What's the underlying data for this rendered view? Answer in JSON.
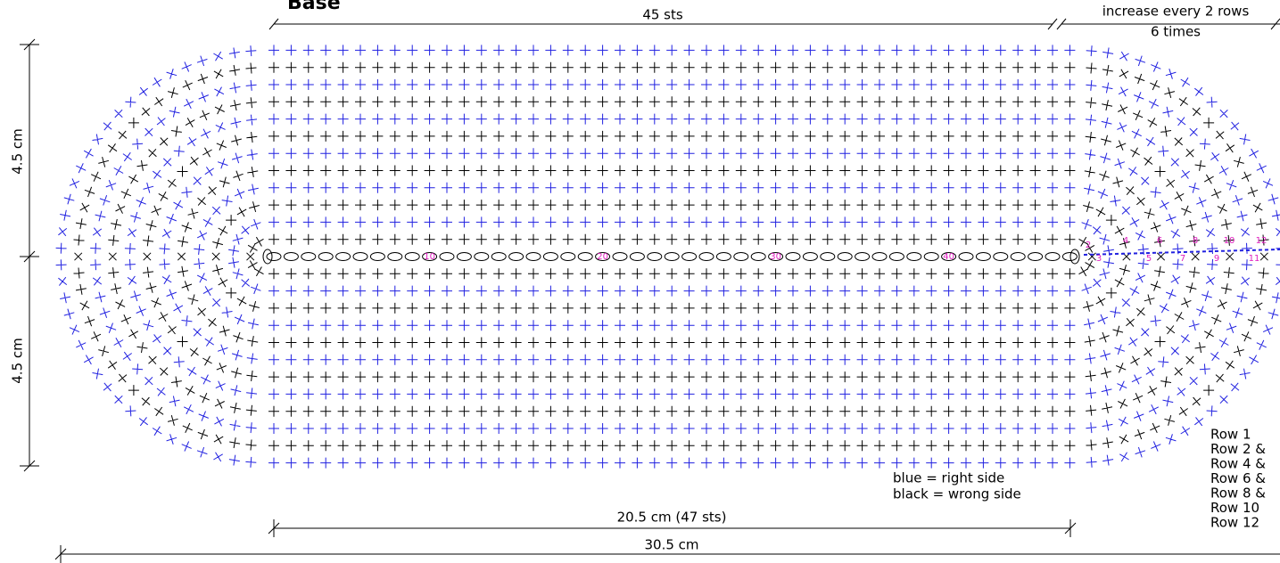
{
  "title": "Base",
  "top_dimension": {
    "left": "45 sts",
    "right_line1": "increase every 2 rows",
    "right_line2": "6 times"
  },
  "height_labels": [
    "4.5 cm",
    "4.5 cm"
  ],
  "width_labels": [
    "20.5 cm (47 sts)",
    "30.5 cm"
  ],
  "legend": [
    "blue = right side",
    "black = wrong side"
  ],
  "rows": [
    "Row 1",
    "Row 2 &",
    "Row 4 &",
    "Row 6 &",
    "Row 8 &",
    "Row 10",
    "Row 12"
  ],
  "chain_markers": [
    "10",
    "20",
    "30",
    "40"
  ],
  "row_markers": [
    "2",
    "3",
    "4",
    "5",
    "6",
    "7",
    "8",
    "9",
    "10",
    "11",
    "12"
  ]
}
